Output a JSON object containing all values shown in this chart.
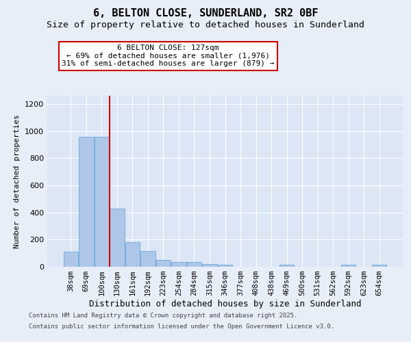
{
  "title_line1": "6, BELTON CLOSE, SUNDERLAND, SR2 0BF",
  "title_line2": "Size of property relative to detached houses in Sunderland",
  "xlabel": "Distribution of detached houses by size in Sunderland",
  "ylabel": "Number of detached properties",
  "categories": [
    "38sqm",
    "69sqm",
    "100sqm",
    "130sqm",
    "161sqm",
    "192sqm",
    "223sqm",
    "254sqm",
    "284sqm",
    "315sqm",
    "346sqm",
    "377sqm",
    "408sqm",
    "438sqm",
    "469sqm",
    "500sqm",
    "531sqm",
    "562sqm",
    "592sqm",
    "623sqm",
    "654sqm"
  ],
  "values": [
    110,
    960,
    960,
    430,
    180,
    115,
    50,
    35,
    35,
    20,
    15,
    0,
    0,
    0,
    15,
    0,
    0,
    0,
    15,
    0,
    15
  ],
  "bar_color": "#aec6e8",
  "bar_edge_color": "#5a9fd4",
  "background_color": "#e8eef7",
  "plot_bg_color": "#dce6f5",
  "grid_color": "#ffffff",
  "vline_color": "#cc0000",
  "vline_pos": 2.5,
  "annotation_text": "6 BELTON CLOSE: 127sqm\n← 69% of detached houses are smaller (1,976)\n31% of semi-detached houses are larger (879) →",
  "annotation_box_color": "#ffffff",
  "annotation_box_edge": "#cc0000",
  "ylim_max": 1260,
  "yticks": [
    0,
    200,
    400,
    600,
    800,
    1000,
    1200
  ],
  "footer_line1": "Contains HM Land Registry data © Crown copyright and database right 2025.",
  "footer_line2": "Contains public sector information licensed under the Open Government Licence v3.0."
}
